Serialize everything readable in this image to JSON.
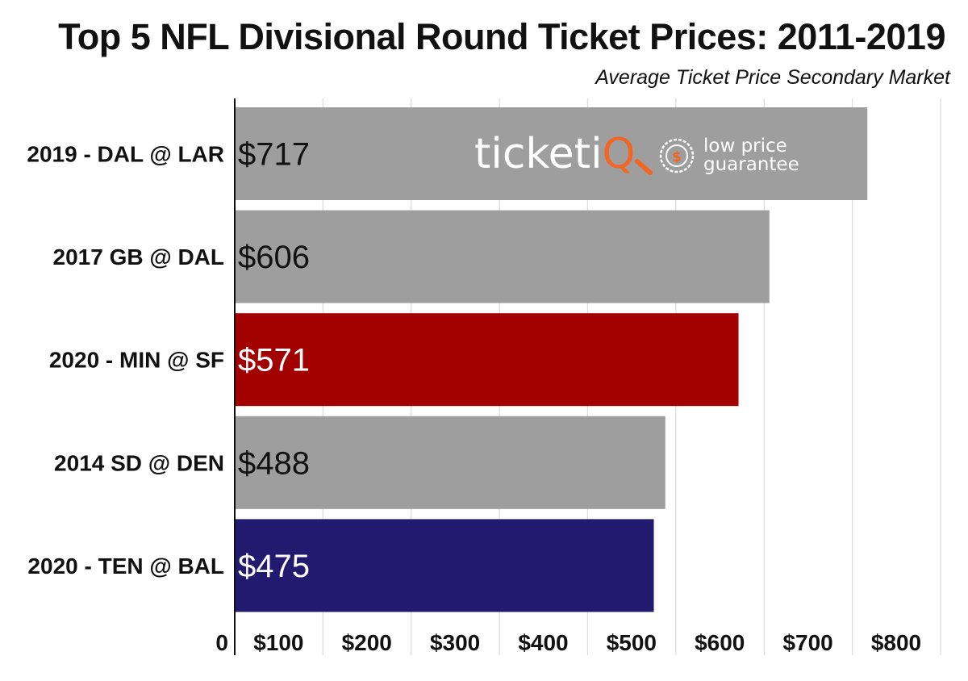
{
  "chart_data": {
    "type": "bar",
    "orientation": "horizontal",
    "title": "Top 5 NFL Divisional Round Ticket Prices: 2011-2019",
    "subtitle": "Average Ticket Price Secondary Market",
    "categories": [
      "2019 - DAL @ LAR",
      "2017 GB @ DAL",
      "2020 - MIN @ SF",
      "2014 SD @ DEN",
      "2020 - TEN @ BAL"
    ],
    "values": [
      717,
      606,
      571,
      488,
      475
    ],
    "value_labels": [
      "$717",
      "$606",
      "$571",
      "$488",
      "$475"
    ],
    "bar_colors": [
      "#9e9e9e",
      "#9e9e9e",
      "#a30000",
      "#9e9e9e",
      "#221a6e"
    ],
    "label_colors": [
      "#111111",
      "#111111",
      "#ffffff",
      "#111111",
      "#ffffff"
    ],
    "xlim": [
      0,
      800
    ],
    "xticks": [
      0,
      100,
      200,
      300,
      400,
      500,
      600,
      700,
      800
    ],
    "xtick_labels": [
      "0",
      "$100",
      "$200",
      "$300",
      "$400",
      "$500",
      "$600",
      "$700",
      "$800"
    ],
    "xlabel": "",
    "ylabel": "",
    "grid": true
  },
  "watermark": {
    "brand_main": "ticketi",
    "brand_accent": "Q",
    "tagline_line1": "low price",
    "tagline_line2": "guarantee",
    "accent_color": "#f26522"
  }
}
